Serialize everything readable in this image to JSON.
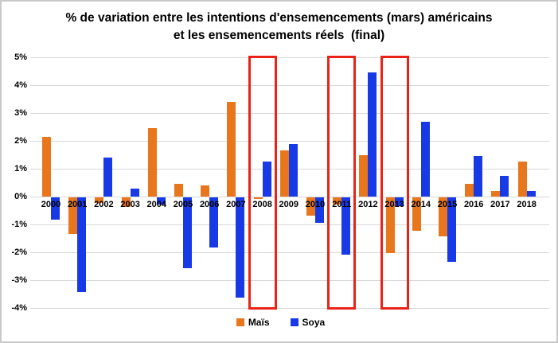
{
  "title": {
    "line1": "% de variation entre les intentions d'ensemencements (mars) américains",
    "line2": "et les ensemencements réels  (final)"
  },
  "legend": {
    "mais_label": "Maïs",
    "soya_label": "Soya"
  },
  "colors": {
    "mais": "#e8761c",
    "soya": "#1839e6",
    "highlight_box": "#ea2218",
    "gridline": "#d8d8d8"
  },
  "chart_data": {
    "type": "bar",
    "title": "% de variation entre les intentions d'ensemencements (mars) américains et les ensemencements réels (final)",
    "categories": [
      "2000",
      "2001",
      "2002",
      "2003",
      "2004",
      "2005",
      "2006",
      "2007",
      "2008",
      "2009",
      "2010",
      "2011",
      "2012",
      "2013",
      "2014",
      "2015",
      "2016",
      "2017",
      "2018"
    ],
    "series": [
      {
        "name": "Maïs",
        "color": "#e8761c",
        "values": [
          2.15,
          -1.3,
          -0.2,
          -0.35,
          2.45,
          0.45,
          0.4,
          3.4,
          -0.05,
          1.65,
          -0.65,
          -0.25,
          1.5,
          -2.0,
          -1.2,
          -1.4,
          0.45,
          0.2,
          1.25
        ]
      },
      {
        "name": "Soya",
        "color": "#1839e6",
        "values": [
          -0.8,
          -3.4,
          1.4,
          0.3,
          -0.25,
          -2.55,
          -1.8,
          -3.6,
          1.25,
          1.9,
          -0.9,
          -2.05,
          4.45,
          -0.3,
          2.7,
          -2.3,
          1.45,
          0.75,
          0.2
        ]
      }
    ],
    "ylim": [
      -4,
      5
    ],
    "ytick_labels": [
      "5%",
      "4%",
      "3%",
      "2%",
      "1%",
      "0%",
      "-1%",
      "-2%",
      "-3%",
      "-4%"
    ],
    "ytick_values": [
      5,
      4,
      3,
      2,
      1,
      0,
      -1,
      -2,
      -3,
      -4
    ],
    "xlabel": "",
    "ylabel": "",
    "grid": "horizontal",
    "legend_position": "bottom",
    "highlighted_years": [
      "2008",
      "2011",
      "2013"
    ]
  }
}
